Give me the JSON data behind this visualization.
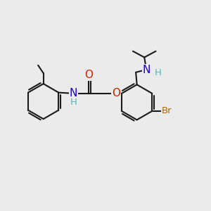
{
  "bg_color": "#ebebeb",
  "bond_color": "#1a1a1a",
  "bond_width": 1.5,
  "atom_colors": {
    "N_dark": "#1a00cc",
    "N_light": "#0000cc",
    "O": "#cc2200",
    "Br": "#aa6600",
    "H": "#4db8b8"
  },
  "font_size": 9.5,
  "figsize": [
    3.0,
    3.0
  ],
  "dpi": 100
}
